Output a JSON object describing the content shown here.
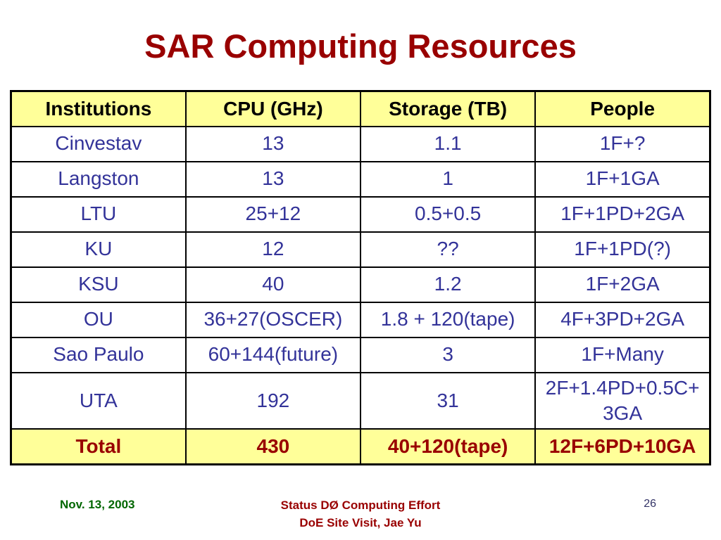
{
  "slide": {
    "title": "SAR Computing Resources"
  },
  "table": {
    "headers": [
      "Institutions",
      "CPU (GHz)",
      "Storage (TB)",
      "People"
    ],
    "rows": [
      {
        "institution": "Cinvestav",
        "cpu": "13",
        "storage": "1.1",
        "people": "1F+?"
      },
      {
        "institution": "Langston",
        "cpu": "13",
        "storage": "1",
        "people": "1F+1GA"
      },
      {
        "institution": "LTU",
        "cpu": "25+12",
        "storage": "0.5+0.5",
        "people": "1F+1PD+2GA"
      },
      {
        "institution": "KU",
        "cpu": "12",
        "storage": "??",
        "people": "1F+1PD(?)"
      },
      {
        "institution": "KSU",
        "cpu": "40",
        "storage": "1.2",
        "people": "1F+2GA"
      },
      {
        "institution": "OU",
        "cpu": "36+27(OSCER)",
        "storage": "1.8 + 120(tape)",
        "people": "4F+3PD+2GA"
      },
      {
        "institution": "Sao Paulo",
        "cpu": "60+144(future)",
        "storage": "3",
        "people": "1F+Many"
      },
      {
        "institution": "UTA",
        "cpu": "192",
        "storage": "31",
        "people": "2F+1.4PD+0.5C+3GA"
      }
    ],
    "total": {
      "institution": "Total",
      "cpu": "430",
      "storage": "40+120(tape)",
      "people": "12F+6PD+10GA"
    }
  },
  "footer": {
    "date": "Nov. 13, 2003",
    "center_line1": "Status DØ Computing Effort",
    "center_line2": "DoE Site Visit, Jae Yu",
    "page_number": "26"
  },
  "colors": {
    "title_red": "#990000",
    "header_row_yellow": "#FFFF99",
    "data_text_blue": "#333399",
    "total_text_red": "#990000",
    "footer_date_green": "#006600",
    "page_number_blue": "#333366"
  }
}
